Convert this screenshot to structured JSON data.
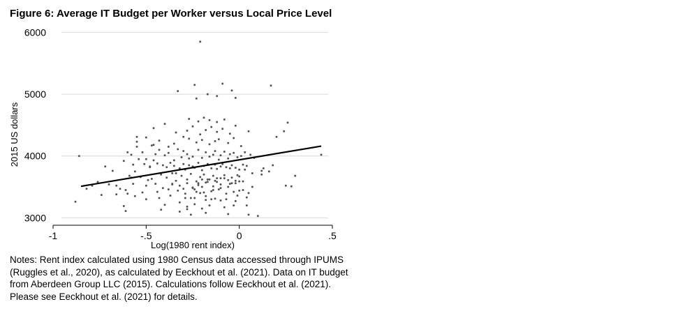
{
  "figure": {
    "title": "Figure 6: Average IT Budget per Worker versus Local Price Level",
    "notes": [
      "Notes: Rent index calculated using 1980 Census data accessed through IPUMS",
      "(Ruggles et al., 2020), as calculated by Eeckhout et al. (2021). Data on IT budget",
      "from Aberdeen Group LLC (2015). Calculations follow Eeckhout et al. (2021).",
      "Please see Eeckhout et al. (2021) for details."
    ]
  },
  "colors": {
    "points": "#555555",
    "fit_line": "#000000",
    "grid": "#d9d9d9",
    "axis": "#000000"
  },
  "chart_data": {
    "type": "scatter",
    "title": "",
    "xlabel": "Log(1980 rent index)",
    "ylabel": "2015 US dollars",
    "xlim": [
      -1.0,
      0.5
    ],
    "ylim": [
      2880,
      6050
    ],
    "xticks": [
      -1.0,
      -0.5,
      0.0,
      0.5
    ],
    "xtick_labels": [
      "-1",
      "-.5",
      "0",
      ".5"
    ],
    "yticks": [
      3000,
      4000,
      5000,
      6000
    ],
    "ytick_labels": [
      "3000",
      "4000",
      "5000",
      "6000"
    ],
    "grid": "horizontal",
    "legend": "none",
    "fit_line": {
      "x": [
        -0.85,
        0.44
      ],
      "y": [
        3510,
        4160
      ]
    },
    "points": {
      "x": [
        -0.21,
        -0.88,
        -0.86,
        -0.82,
        -0.79,
        -0.76,
        -0.74,
        -0.72,
        -0.7,
        -0.68,
        -0.66,
        -0.64,
        -0.62,
        -0.61,
        -0.6,
        -0.58,
        -0.57,
        -0.55,
        -0.52,
        -0.5,
        -0.48,
        -0.45,
        -0.43,
        -0.42,
        -0.4,
        -0.38,
        -0.36,
        -0.34,
        -0.32,
        -0.3,
        -0.29,
        -0.28,
        -0.26,
        -0.25,
        -0.24,
        -0.23,
        -0.22,
        -0.2,
        -0.19,
        -0.18,
        -0.16,
        -0.15,
        -0.14,
        -0.12,
        -0.11,
        -0.1,
        -0.08,
        -0.07,
        -0.06,
        -0.05,
        -0.03,
        -0.02,
        -0.01,
        0.0,
        0.02,
        0.04,
        0.05,
        0.07,
        0.1,
        0.12,
        0.16,
        0.2,
        0.24,
        0.26,
        0.28,
        0.3,
        0.44,
        -0.24,
        -0.23,
        -0.12,
        -0.09,
        -0.04,
        0.17,
        -0.33,
        -0.17,
        -0.02,
        -0.6,
        -0.58,
        -0.55,
        -0.52,
        -0.5,
        -0.47,
        -0.45,
        -0.43,
        -0.4,
        -0.38,
        -0.35,
        -0.33,
        -0.31,
        -0.3,
        -0.28,
        -0.27,
        -0.25,
        -0.22,
        -0.2,
        -0.18,
        -0.16,
        -0.14,
        -0.13,
        -0.11,
        -0.1,
        -0.08,
        -0.06,
        -0.05,
        -0.03,
        -0.01,
        0.01,
        0.03,
        0.06,
        0.08,
        -0.62,
        -0.57,
        -0.54,
        -0.51,
        -0.48,
        -0.46,
        -0.44,
        -0.41,
        -0.39,
        -0.37,
        -0.35,
        -0.32,
        -0.3,
        -0.29,
        -0.27,
        -0.25,
        -0.24,
        -0.22,
        -0.2,
        -0.19,
        -0.17,
        -0.15,
        -0.13,
        -0.12,
        -0.1,
        -0.09,
        -0.07,
        -0.05,
        -0.04,
        -0.02,
        0.0,
        0.02,
        0.04,
        0.07,
        0.12,
        -0.59,
        -0.56,
        -0.53,
        -0.49,
        -0.47,
        -0.42,
        -0.39,
        -0.36,
        -0.34,
        -0.31,
        -0.28,
        -0.26,
        -0.23,
        -0.21,
        -0.19,
        -0.17,
        -0.14,
        -0.12,
        -0.1,
        -0.08,
        -0.06,
        -0.04,
        -0.02,
        0.0,
        0.03,
        0.05,
        -0.66,
        -0.61,
        -0.56,
        -0.5,
        -0.44,
        -0.41,
        -0.37,
        -0.33,
        -0.29,
        -0.26,
        -0.24,
        -0.21,
        -0.18,
        -0.15,
        -0.13,
        -0.1,
        -0.07,
        -0.03,
        -0.01,
        0.04,
        -0.55,
        -0.5,
        -0.46,
        -0.43,
        -0.38,
        -0.35,
        -0.3,
        -0.27,
        -0.23,
        -0.2,
        -0.16,
        -0.13,
        -0.11,
        -0.06,
        -0.03,
        0.01,
        -0.46,
        -0.4,
        -0.34,
        -0.28,
        -0.25,
        -0.21,
        -0.18,
        -0.15,
        -0.12,
        -0.09,
        -0.05,
        -0.02,
        0.05,
        -0.27,
        -0.22,
        -0.19,
        -0.16,
        -0.12,
        -0.08,
        -0.36,
        -0.32,
        -0.28,
        -0.25,
        -0.22,
        -0.18,
        -0.14,
        -0.1,
        -0.06,
        -0.02,
        0.02,
        0.13,
        0.18,
        0.25,
        -0.2,
        -0.17,
        -0.13,
        -0.08,
        -0.04,
        0.0,
        -0.32,
        -0.28,
        -0.24,
        -0.2,
        -0.16,
        -0.18
      ],
      "y": [
        5850,
        3260,
        4000,
        3470,
        3520,
        3580,
        3370,
        3830,
        3540,
        3760,
        3520,
        3470,
        3190,
        3110,
        3390,
        3650,
        3550,
        4310,
        3410,
        3520,
        3830,
        3550,
        3320,
        3130,
        3210,
        3460,
        3540,
        3720,
        3100,
        3470,
        3320,
        3140,
        3050,
        3480,
        3320,
        3420,
        3560,
        3500,
        3410,
        3290,
        3620,
        3300,
        3450,
        3640,
        3460,
        3280,
        3170,
        3300,
        3060,
        3550,
        3200,
        3270,
        3690,
        3440,
        3450,
        3330,
        3050,
        3500,
        3030,
        3760,
        3750,
        4310,
        4400,
        4540,
        3510,
        3680,
        4020,
        5150,
        4930,
        4970,
        5170,
        5060,
        5140,
        5050,
        5000,
        4940,
        4060,
        4020,
        4150,
        4060,
        3950,
        4170,
        4030,
        4100,
        4010,
        4050,
        3930,
        4110,
        3980,
        4080,
        4030,
        3960,
        3990,
        4100,
        3970,
        4060,
        3990,
        4020,
        4080,
        3940,
        4010,
        4070,
        3960,
        4030,
        4050,
        3980,
        4000,
        4060,
        4020,
        3970,
        3920,
        3860,
        3950,
        3870,
        3820,
        3930,
        3880,
        3850,
        3820,
        3890,
        3840,
        3800,
        3870,
        3780,
        3850,
        3830,
        3810,
        3890,
        3770,
        3840,
        3870,
        3800,
        3860,
        3790,
        3830,
        3870,
        3820,
        3800,
        3850,
        3810,
        3780,
        3860,
        3840,
        3720,
        3700,
        3680,
        3750,
        3660,
        3610,
        3630,
        3700,
        3650,
        3720,
        3600,
        3680,
        3620,
        3710,
        3590,
        3660,
        3700,
        3620,
        3680,
        3580,
        3640,
        3690,
        3610,
        3650,
        3600,
        3670,
        3780,
        3400,
        3380,
        3450,
        3350,
        3300,
        3420,
        3480,
        3360,
        3440,
        3390,
        3320,
        3460,
        3400,
        3350,
        3430,
        3310,
        3480,
        3390,
        3420,
        3360,
        3200,
        4230,
        4300,
        4180,
        4250,
        4150,
        4200,
        4310,
        4280,
        4220,
        4260,
        4190,
        4240,
        4270,
        4210,
        4290,
        4160,
        4450,
        4520,
        4380,
        4410,
        4480,
        4350,
        4420,
        4470,
        4390,
        4440,
        4360,
        4490,
        4400,
        4600,
        4560,
        4620,
        4580,
        4550,
        4590,
        3550,
        3520,
        3560,
        3490,
        3530,
        3570,
        3510,
        3540,
        3500,
        3560,
        3590,
        3800,
        3850,
        3520,
        3620,
        3580,
        3600,
        3640,
        3560,
        3590,
        3250,
        3180,
        3220,
        3150,
        3200,
        3080
      ]
    }
  }
}
